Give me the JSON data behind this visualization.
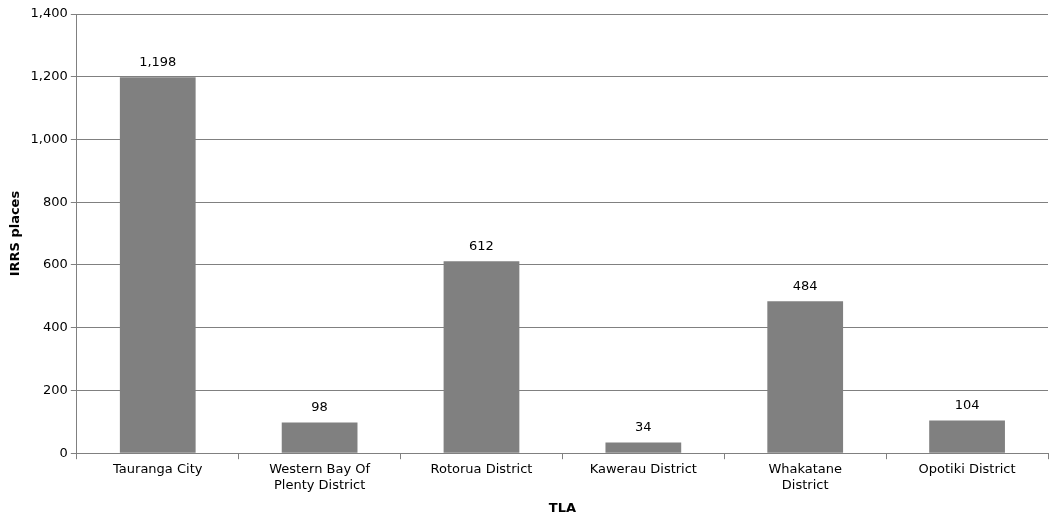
{
  "chart_data": {
    "type": "bar",
    "xlabel": "TLA",
    "ylabel": "IRRS places",
    "categories": [
      "Tauranga City",
      "Western Bay Of Plenty District",
      "Rotorua District",
      "Kawerau District",
      "Whakatane District",
      "Opotiki District"
    ],
    "values": [
      1198,
      98,
      612,
      34,
      484,
      104
    ],
    "color": "#808080",
    "value_labels": [
      "1,198",
      "98",
      "612",
      "34",
      "484",
      "104"
    ],
    "ylim": [
      0,
      1400
    ],
    "yticks": [
      0,
      200,
      400,
      600,
      800,
      {
        "value": 1000,
        "label": "1,000"
      },
      {
        "value": 1200,
        "label": "1,200"
      },
      {
        "value": 1400,
        "label": "1,400"
      }
    ],
    "grid": "y"
  }
}
